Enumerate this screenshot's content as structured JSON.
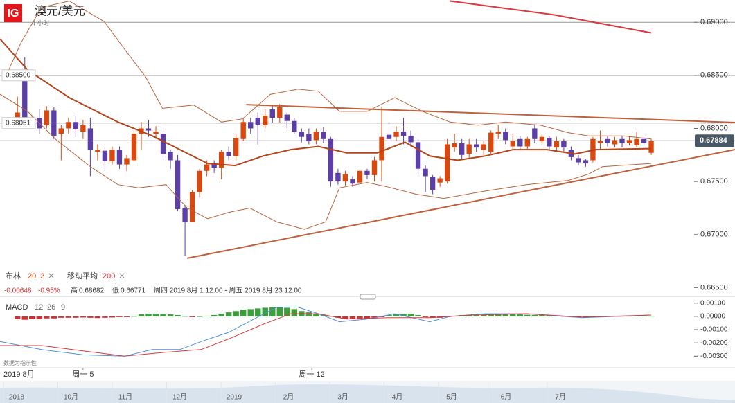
{
  "header": {
    "logo": "IG",
    "title": "澳元/美元",
    "timeframe": "4 小时"
  },
  "indicators": {
    "bollinger": "布林",
    "boll_period": "20",
    "boll_dev": "2",
    "ma": "移动平均",
    "ma_period": "200",
    "change": "-0.00648",
    "change_pct": "-0.95%",
    "high_label": "高",
    "high": "0.68682",
    "low_label": "低",
    "low": "0.66771",
    "range": "周四 2019 8月 1 12:00 - 周五 2019 8月 23 12:00",
    "macd": "MACD",
    "macd_fast": "12",
    "macd_slow": "26",
    "macd_signal": "9",
    "note": "数据为指示性"
  },
  "time_axis": {
    "start": "2019 8月"
  },
  "navigator": {
    "labels": [
      "2018",
      "10月",
      "11月",
      "12月",
      "2019",
      "2月",
      "3月",
      "4月",
      "5月",
      "6月",
      "7月"
    ]
  },
  "chart_data": [
    {
      "type": "candlestick",
      "up_color": "#d9480f",
      "down_color": "#5b3fa6",
      "xlim": [
        -2.4,
        92.7
      ],
      "ylim": [
        0.6647,
        0.6921
      ],
      "xticks": [
        {
          "value": 9,
          "label": "周一 5"
        },
        {
          "value": 40.4,
          "label": "周一 12"
        }
      ],
      "yticks": [
        {
          "value": 0.69,
          "label": "0.69000"
        },
        {
          "value": 0.685,
          "label": "0.68500"
        },
        {
          "value": 0.68,
          "label": "0.68000"
        },
        {
          "value": 0.675,
          "label": "0.67500"
        },
        {
          "value": 0.67,
          "label": "0.67000"
        },
        {
          "value": 0.665,
          "label": "0.66500"
        }
      ],
      "gridlines": [
        0.69
      ],
      "price_labels": [
        {
          "value": 0.685,
          "label": "0.68500",
          "color": "#777777"
        },
        {
          "value": 0.68051,
          "label": "0.68051",
          "color": "#222222"
        }
      ],
      "last_price": {
        "value": 0.67884,
        "label": "0.67884",
        "color": "#9e9e9e"
      },
      "open": [
        0.681,
        0.685,
        0.6803,
        0.681,
        0.6803,
        0.6817,
        0.6795,
        0.68,
        0.6806,
        0.6797,
        0.68,
        0.6778,
        0.6779,
        0.6769,
        0.678,
        0.6766,
        0.677,
        0.6795,
        0.68,
        0.6795,
        0.6795,
        0.6778,
        0.677,
        0.6725,
        0.6712,
        0.674,
        0.676,
        0.6767,
        0.6763,
        0.6778,
        0.6774,
        0.679,
        0.6806,
        0.681,
        0.6803,
        0.6818,
        0.681,
        0.6813,
        0.6807,
        0.6797,
        0.6795,
        0.6789,
        0.6797,
        0.679,
        0.6758,
        0.675,
        0.6752,
        0.6749,
        0.676,
        0.6756,
        0.677,
        0.6794,
        0.6792,
        0.6797,
        0.6793,
        0.6787,
        0.6762,
        0.6754,
        0.6749,
        0.675,
        0.6782,
        0.6786,
        0.6776,
        0.6785,
        0.678,
        0.6778,
        0.6795,
        0.6797,
        0.6783,
        0.679,
        0.6783,
        0.68,
        0.6788,
        0.6791,
        0.6782,
        0.6788,
        0.678,
        0.6772,
        0.677,
        0.677,
        0.6786,
        0.679,
        0.6785,
        0.679,
        0.6786,
        0.6784,
        0.679,
        0.6777
      ],
      "high": [
        0.683,
        0.6867,
        0.6812,
        0.6818,
        0.6821,
        0.682,
        0.6803,
        0.681,
        0.6812,
        0.6808,
        0.681,
        0.6785,
        0.6782,
        0.6783,
        0.6783,
        0.6775,
        0.6798,
        0.6806,
        0.6808,
        0.6802,
        0.6798,
        0.678,
        0.6775,
        0.6728,
        0.6742,
        0.6762,
        0.677,
        0.677,
        0.678,
        0.6783,
        0.6795,
        0.681,
        0.681,
        0.6815,
        0.6818,
        0.6822,
        0.6823,
        0.6815,
        0.681,
        0.68,
        0.68,
        0.68,
        0.6801,
        0.6792,
        0.6762,
        0.676,
        0.6755,
        0.6761,
        0.6762,
        0.6773,
        0.682,
        0.6805,
        0.6802,
        0.681,
        0.6798,
        0.679,
        0.6765,
        0.6756,
        0.6755,
        0.679,
        0.6795,
        0.679,
        0.679,
        0.679,
        0.6788,
        0.6798,
        0.6803,
        0.68,
        0.6795,
        0.6793,
        0.6792,
        0.6804,
        0.6795,
        0.6793,
        0.6792,
        0.679,
        0.6783,
        0.6775,
        0.6771,
        0.6792,
        0.6798,
        0.6793,
        0.6792,
        0.6793,
        0.6793,
        0.6797,
        0.6793,
        0.679
      ],
      "low": [
        0.6805,
        0.6802,
        0.68,
        0.6795,
        0.68,
        0.679,
        0.677,
        0.6795,
        0.6792,
        0.679,
        0.6755,
        0.677,
        0.676,
        0.6766,
        0.6762,
        0.676,
        0.6768,
        0.678,
        0.6792,
        0.679,
        0.677,
        0.6762,
        0.6722,
        0.668,
        0.6712,
        0.6735,
        0.6755,
        0.6758,
        0.6752,
        0.677,
        0.677,
        0.6788,
        0.6795,
        0.6785,
        0.68,
        0.6805,
        0.6805,
        0.68,
        0.6795,
        0.6787,
        0.6785,
        0.6785,
        0.6786,
        0.6745,
        0.6747,
        0.6746,
        0.6745,
        0.6748,
        0.6752,
        0.675,
        0.675,
        0.6785,
        0.6788,
        0.6785,
        0.6783,
        0.6755,
        0.674,
        0.6738,
        0.6745,
        0.6748,
        0.6778,
        0.677,
        0.6772,
        0.6778,
        0.6775,
        0.6776,
        0.679,
        0.6785,
        0.678,
        0.678,
        0.678,
        0.6786,
        0.6785,
        0.678,
        0.6778,
        0.6778,
        0.677,
        0.6765,
        0.6764,
        0.6768,
        0.678,
        0.6783,
        0.6782,
        0.6782,
        0.6784,
        0.6782,
        0.6783,
        0.6775
      ],
      "close": [
        0.6815,
        0.6808,
        0.681,
        0.68,
        0.6817,
        0.6793,
        0.68,
        0.6806,
        0.6799,
        0.6803,
        0.678,
        0.678,
        0.6769,
        0.678,
        0.6766,
        0.6772,
        0.6795,
        0.68,
        0.6798,
        0.6797,
        0.6776,
        0.677,
        0.6724,
        0.6712,
        0.674,
        0.676,
        0.6766,
        0.6763,
        0.6778,
        0.6774,
        0.6791,
        0.6806,
        0.68,
        0.6803,
        0.6812,
        0.681,
        0.682,
        0.6807,
        0.6797,
        0.6792,
        0.6788,
        0.6797,
        0.679,
        0.675,
        0.675,
        0.6757,
        0.6748,
        0.676,
        0.6756,
        0.677,
        0.6792,
        0.679,
        0.6797,
        0.6793,
        0.6787,
        0.6762,
        0.6755,
        0.6742,
        0.6753,
        0.6785,
        0.6786,
        0.6775,
        0.6785,
        0.6782,
        0.6785,
        0.6796,
        0.6797,
        0.6789,
        0.6788,
        0.6783,
        0.679,
        0.679,
        0.6792,
        0.6783,
        0.6788,
        0.6782,
        0.6773,
        0.6768,
        0.6767,
        0.679,
        0.6788,
        0.6786,
        0.6789,
        0.6786,
        0.6789,
        0.679,
        0.6786,
        0.6788
      ],
      "lines": [
        {
          "color": "#b8643c",
          "width": 1,
          "x": [
            -1.4,
            0.5,
            3.3,
            7.1,
            11.9,
            14.7,
            17.6,
            19.9,
            24.2,
            28,
            30.9,
            34.7,
            38.5,
            41.3,
            44.2,
            48,
            51.8,
            55.6,
            59.4,
            63.2,
            67,
            71.8,
            75.6,
            78.4,
            83.2,
            87
          ],
          "values": [
            0.6852,
            0.6881,
            0.6914,
            0.692,
            0.69007,
            0.68746,
            0.68485,
            0.6819,
            0.6822,
            0.6806,
            0.6809,
            0.6832,
            0.6837,
            0.6835,
            0.6816,
            0.6816,
            0.6829,
            0.6816,
            0.6806,
            0.6803,
            0.6806,
            0.6803,
            0.6796,
            0.6793,
            0.6793,
            0.679
          ]
        },
        {
          "color": "#b8643c",
          "width": 1,
          "x": [
            -2.4,
            1.4,
            5.2,
            10,
            13.8,
            16.6,
            20.4,
            23.3,
            26.1,
            29,
            31.9,
            35.6,
            39.4,
            42.3,
            44.2,
            48,
            50.8,
            54.7,
            58.5,
            64.2,
            69.9,
            75.6,
            78.4,
            80.3,
            87
          ],
          "values": [
            0.68322,
            0.6816,
            0.679,
            0.6764,
            0.6747,
            0.6744,
            0.6747,
            0.6725,
            0.6715,
            0.6721,
            0.6725,
            0.6712,
            0.6705,
            0.6712,
            0.6744,
            0.6749,
            0.6745,
            0.6738,
            0.6734,
            0.6741,
            0.6747,
            0.6751,
            0.6757,
            0.6764,
            0.6767
          ]
        },
        {
          "color": "#b4441a",
          "width": 2,
          "x": [
            -2.4,
            1.4,
            7.1,
            13.8,
            18.5,
            22.3,
            26.1,
            29.9,
            33.7,
            37.5,
            41.3,
            45.2,
            49.4,
            53.2,
            56.6,
            60.4,
            64.2,
            68,
            72.7,
            76.5,
            79.4,
            87
          ],
          "values": [
            0.68843,
            0.6855,
            0.6829,
            0.6806,
            0.6793,
            0.678,
            0.6767,
            0.6765,
            0.6774,
            0.678,
            0.6783,
            0.6777,
            0.6777,
            0.6787,
            0.6774,
            0.677,
            0.6774,
            0.678,
            0.678,
            0.6776,
            0.678,
            0.6781
          ]
        },
        {
          "color": "#d9393e",
          "width": 2,
          "x": [
            59.4,
            73.7,
            87
          ],
          "values": [
            0.692,
            0.6907,
            0.689
          ]
        }
      ],
      "trendlines": [
        {
          "color": "#c0603a",
          "x": [
            31.4,
            98.5
          ],
          "values": [
            0.68224,
            0.68055
          ]
        },
        {
          "color": "#c0603a",
          "x": [
            23.3,
            98.5
          ],
          "values": [
            0.66777,
            0.67801
          ]
        }
      ]
    },
    {
      "type": "macd",
      "xlim": [
        -2.4,
        92.7
      ],
      "ylim": [
        -0.0034,
        0.0013
      ],
      "pos_color": "#3aa03a",
      "neg_color": "#d32f2f",
      "yticks": [
        {
          "value": 0.001,
          "label": "0.00100"
        },
        {
          "value": 0,
          "label": "0.00000"
        },
        {
          "value": -0.001,
          "label": "-0.00100"
        },
        {
          "value": -0.002,
          "label": "-0.00200"
        },
        {
          "value": -0.003,
          "label": "-0.00300"
        }
      ],
      "histogram": [
        -0.0002,
        -0.00025,
        -0.0002,
        -0.0002,
        -0.00015,
        -0.00015,
        -0.0001,
        -0.0001,
        -0.0001,
        -8e-05,
        -0.0001,
        -0.00012,
        -0.0001,
        -8e-05,
        -5e-05,
        -2e-05,
        3e-05,
        0.00015,
        0.0002,
        0.0002,
        0.00018,
        0.00015,
        0.0001,
        3e-05,
        -3e-05,
        2e-05,
        5e-05,
        0.0001,
        0.0002,
        0.0003,
        0.0004,
        0.0005,
        0.00055,
        0.0006,
        0.00065,
        0.0007,
        0.0007,
        0.00065,
        0.00055,
        0.0004,
        0.0003,
        0.0002,
        0.0001,
        3e-05,
        -0.0001,
        -0.00018,
        -0.0002,
        -0.0002,
        -0.00015,
        -0.0001,
        -5e-05,
        0.0001,
        0.00015,
        0.0002,
        0.0002,
        0.0001,
        -5e-05,
        -0.0001,
        -0.0001,
        -5e-05,
        5e-05,
        0.0001,
        0.00012,
        0.00012,
        0.00012,
        0.00015,
        0.0002,
        0.0002,
        0.00018,
        0.00015,
        0.00012,
        0.0001,
        0.0001,
        8e-05,
        5e-05,
        3e-05,
        2e-05,
        -3e-05,
        -0.0001,
        -8e-05,
        2e-05,
        4e-05,
        5e-05,
        4e-05,
        4e-05,
        5e-05,
        5e-05,
        4e-05
      ],
      "lines": [
        {
          "color": "#4a90d9",
          "x": [
            -2.4,
            3.3,
            9,
            14.7,
            18.5,
            22.3,
            25.2,
            29,
            32.8,
            35.6,
            38.5,
            41.3,
            44.2,
            48,
            51.8,
            56.6,
            59.4,
            64.2,
            69.9,
            77.5,
            87
          ],
          "values": [
            -0.0019,
            -0.0025,
            -0.0029,
            -0.003,
            -0.0025,
            -0.0025,
            -0.0019,
            -0.0012,
            -0.0001,
            0.0007,
            0.0007,
            0.0002,
            -0.0004,
            -0.0002,
            0.0002,
            -0.0004,
            0,
            0.0002,
            0.0002,
            -0.0001,
            0.0001
          ]
        },
        {
          "color": "#d9393e",
          "x": [
            -2.4,
            3.3,
            9,
            14.7,
            20.4,
            25.2,
            29,
            33.7,
            37.5,
            41.3,
            45.2,
            50.8,
            56.6,
            62.3,
            69.9,
            77.5,
            87
          ],
          "values": [
            -0.0022,
            -0.0022,
            -0.0026,
            -0.003,
            -0.0027,
            -0.0025,
            -0.0017,
            -0.0006,
            0.0002,
            0.0002,
            -0.0002,
            -0.0001,
            -0.0001,
            0.0001,
            0.0002,
            -5e-05,
            0.0001
          ]
        }
      ]
    }
  ]
}
